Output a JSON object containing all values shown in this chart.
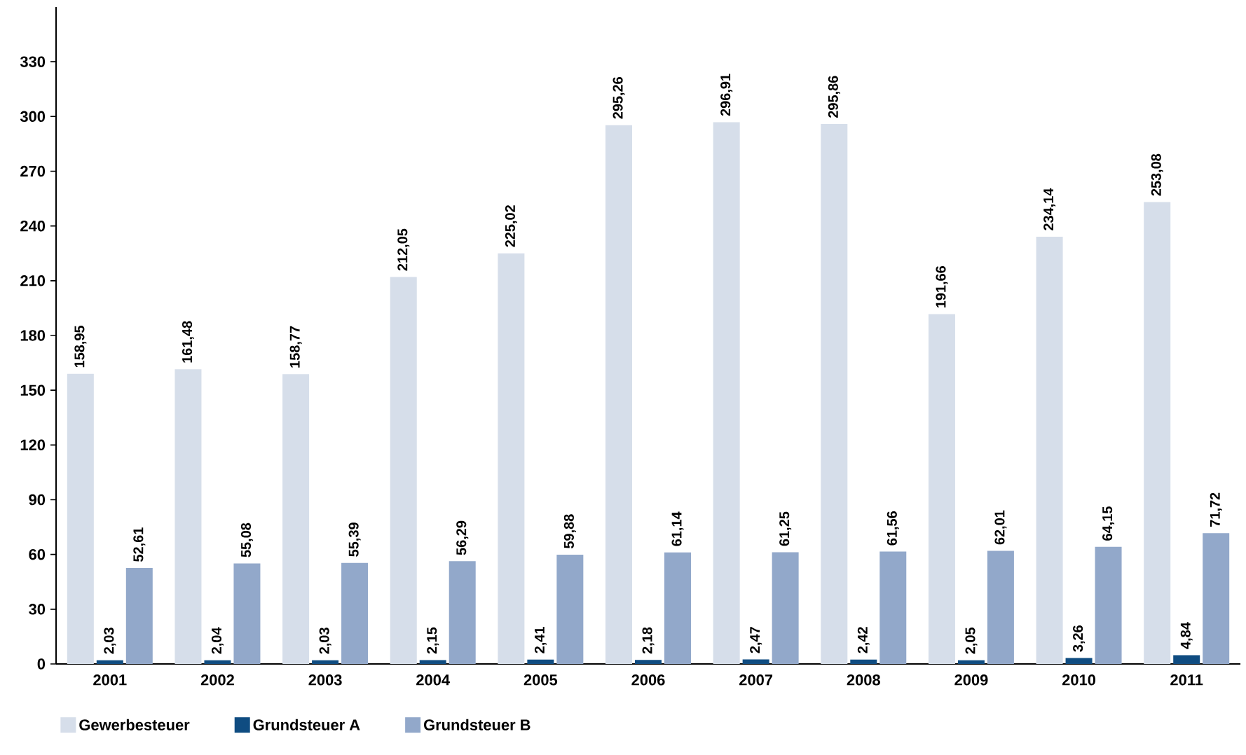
{
  "chart_data": {
    "type": "bar",
    "categories": [
      "2001",
      "2002",
      "2003",
      "2004",
      "2005",
      "2006",
      "2007",
      "2008",
      "2009",
      "2010",
      "2011"
    ],
    "series": [
      {
        "name": "Gewerbesteuer",
        "color": "#d6deea",
        "values": [
          158.95,
          161.48,
          158.77,
          212.05,
          225.02,
          295.26,
          296.91,
          295.86,
          191.66,
          234.14,
          253.08
        ],
        "value_labels": [
          "158,95",
          "161,48",
          "158,77",
          "212,05",
          "225,02",
          "295,26",
          "296,91",
          "295,86",
          "191,66",
          "234,14",
          "253,08"
        ]
      },
      {
        "name": "Grundsteuer A",
        "color": "#0f4c81",
        "values": [
          2.03,
          2.04,
          2.03,
          2.15,
          2.41,
          2.18,
          2.47,
          2.42,
          2.05,
          3.26,
          4.84
        ],
        "value_labels": [
          "2,03",
          "2,04",
          "2,03",
          "2,15",
          "2,41",
          "2,18",
          "2,47",
          "2,42",
          "2,05",
          "3,26",
          "4,84"
        ]
      },
      {
        "name": "Grundsteuer B",
        "color": "#92a8ca",
        "values": [
          52.61,
          55.08,
          55.39,
          56.29,
          59.88,
          61.14,
          61.25,
          61.56,
          62.01,
          64.15,
          71.72
        ],
        "value_labels": [
          "52,61",
          "55,08",
          "55,39",
          "56,29",
          "59,88",
          "61,14",
          "61,25",
          "61,56",
          "62,01",
          "64,15",
          "71,72"
        ]
      }
    ],
    "ylim": [
      0,
      360
    ],
    "yticks": [
      0,
      30,
      60,
      90,
      120,
      150,
      180,
      210,
      240,
      270,
      300,
      330
    ],
    "grid": false,
    "legend": "bottom left"
  }
}
